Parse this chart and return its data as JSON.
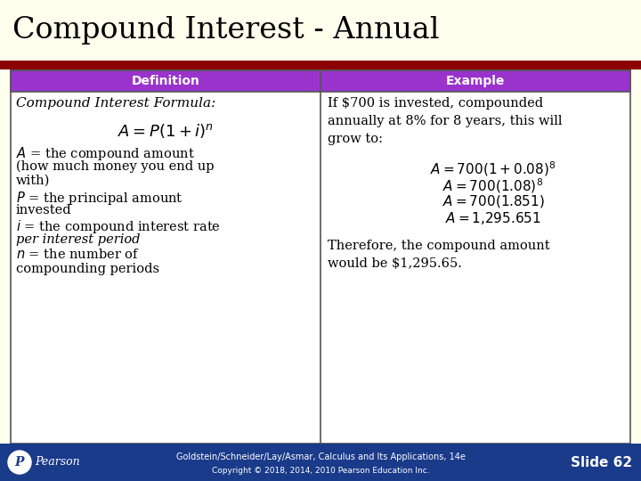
{
  "title": "Compound Interest - Annual",
  "title_bg": "#ffffee",
  "title_color": "#000000",
  "header_bg": "#9933cc",
  "header_text_color": "#ffffff",
  "header_left": "Definition",
  "header_right": "Example",
  "border_color": "#555555",
  "red_bar_color": "#8b0000",
  "footer_bg": "#1a3a8a",
  "footer_text_color": "#ffffff",
  "footer_center_line1": "Goldstein/Schneider/Lay/Asmar, Calculus and Its Applications, 14e",
  "footer_center_line2": "Copyright © 2018, 2014, 2010 Pearson Education Inc.",
  "footer_right": "Slide 62",
  "fig_w": 7.2,
  "fig_h": 5.4,
  "dpi": 100
}
